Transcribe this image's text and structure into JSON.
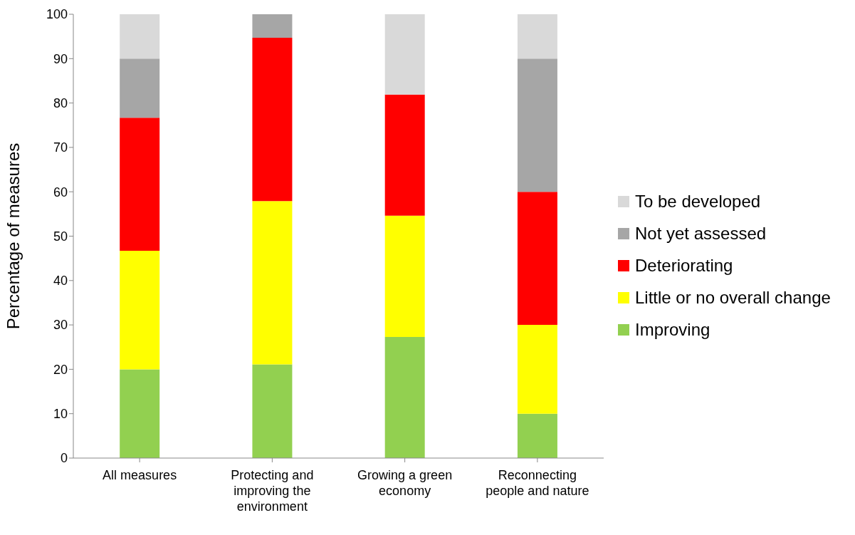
{
  "chart_data": {
    "type": "bar",
    "stacked": true,
    "ylabel": "Percentage of measures",
    "categories": [
      "All measures",
      "Protecting and improving the environment",
      "Growing a green economy",
      "Reconnecting people and nature"
    ],
    "series": [
      {
        "name": "Improving",
        "color": "#92d050",
        "values": [
          20,
          21.1,
          27.3,
          10
        ]
      },
      {
        "name": "Little or no overall change",
        "color": "#ffff00",
        "values": [
          26.7,
          36.8,
          27.3,
          20
        ]
      },
      {
        "name": "Deteriorating",
        "color": "#ff0000",
        "values": [
          30,
          36.8,
          27.3,
          30
        ]
      },
      {
        "name": "Not yet assessed",
        "color": "#a6a6a6",
        "values": [
          13.3,
          5.3,
          0,
          30
        ]
      },
      {
        "name": "To be developed",
        "color": "#d9d9d9",
        "values": [
          10,
          0,
          18.2,
          10
        ]
      }
    ],
    "ylim": [
      0,
      100
    ],
    "yticks": [
      0,
      10,
      20,
      30,
      40,
      50,
      60,
      70,
      80,
      90,
      100
    ],
    "grid": false,
    "legend": "right"
  }
}
